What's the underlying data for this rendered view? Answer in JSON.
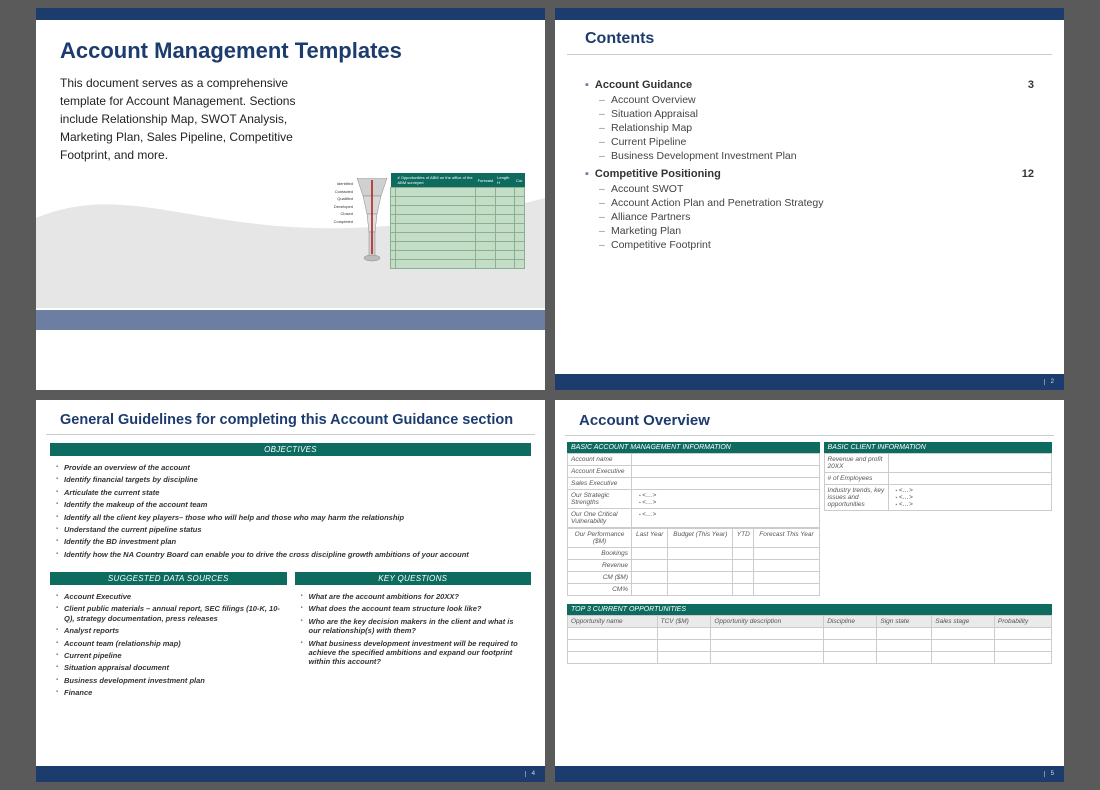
{
  "colors": {
    "navy": "#1d3c6e",
    "teal": "#0d6b5f",
    "slate": "#6c7fa3",
    "mint": "#c4ddc7",
    "bg": "#5a5a5a"
  },
  "slide1": {
    "title": "Account Management Templates",
    "description": "This document serves as a comprehensive template for Account Management.  Sections include Relationship Map, SWOT Analysis, Marketing Plan, Sales Pipeline, Competitive Footprint, and more.",
    "funnel_labels": [
      "Identified",
      "Contacted",
      "Qualified",
      "Developed",
      "Closed",
      "Completed"
    ],
    "mini_table": {
      "header": [
        "",
        "# Opportunities of ABM on the office of the ABM surveyed",
        "Forecast",
        "Length  H",
        "Cur"
      ],
      "rows": 9
    }
  },
  "slide2": {
    "title": "Contents",
    "page_number": "2",
    "sections": [
      {
        "label": "Account Guidance",
        "page": "3",
        "items": [
          "Account Overview",
          "Situation Appraisal",
          "Relationship Map",
          "Current Pipeline",
          "Business Development Investment Plan"
        ]
      },
      {
        "label": "Competitive Positioning",
        "page": "12",
        "items": [
          "Account SWOT",
          "Account Action Plan and Penetration Strategy",
          "Alliance Partners",
          "Marketing Plan",
          "Competitive Footprint"
        ]
      }
    ]
  },
  "slide3": {
    "title": "General Guidelines for completing this Account Guidance section",
    "page_number": "4",
    "objectives_header": "OBJECTIVES",
    "objectives": [
      "Provide an overview of the account",
      "Identify financial targets by discipline",
      "Articulate the current state",
      "Identify the makeup of the account team",
      "Identify all the client key players– those who will help and those who may harm the relationship",
      "Understand the current pipeline status",
      "Identify the BD investment plan",
      "Identify how the NA Country Board can enable you to drive the cross discipline growth ambitions of your account"
    ],
    "sources_header": "SUGGESTED DATA SOURCES",
    "sources": [
      "Account Executive",
      "Client public materials – annual report, SEC filings (10-K, 10-Q), strategy documentation, press releases",
      "Analyst reports",
      "Account team (relationship map)",
      "Current pipeline",
      "Situation appraisal document",
      "Business development investment plan",
      "Finance"
    ],
    "questions_header": "KEY QUESTIONS",
    "questions": [
      "What are the account ambitions for 20XX?",
      "What does the account team structure look like?",
      "Who are the key decision makers in the client and what is our relationship(s) with them?",
      "What business development investment will be required to achieve the specified ambitions and expand our footprint within this account?"
    ]
  },
  "slide4": {
    "title": "Account Overview",
    "page_number": "5",
    "left_header": "BASIC ACCOUNT MANAGEMENT INFORMATION",
    "right_header": "BASIC CLIENT INFORMATION",
    "left_rows": [
      {
        "label": "Account name",
        "value": ""
      },
      {
        "label": "Account Executive",
        "value": ""
      },
      {
        "label": "Sales Executive",
        "value": ""
      },
      {
        "label": "Our Strategic Strengths",
        "value_list": [
          "<…>",
          "<…>"
        ]
      },
      {
        "label": "Our One Critical Vulnerability",
        "value_list": [
          "<…>"
        ]
      }
    ],
    "right_rows": [
      {
        "label": "Revenue and profit 20XX",
        "value": ""
      },
      {
        "label": "# of Employees",
        "value": ""
      },
      {
        "label": "Industry trends, key issues and opportunities",
        "value_list": [
          "<…>",
          "<…>",
          "<…>"
        ]
      }
    ],
    "perf_label": "Our Performance ($M)",
    "perf_cols": [
      "Last Year",
      "Budget (This Year)",
      "YTD",
      "Forecast This Year"
    ],
    "perf_rows": [
      "Bookings",
      "Revenue",
      "CM ($M)",
      "CM%"
    ],
    "opp_header": "TOP 3 CURRENT OPPORTUNITIES",
    "opp_cols": [
      "Opportunity name",
      "TCV ($M)",
      "Opportunity description",
      "Discipline",
      "Sign state",
      "Sales stage",
      "Probability"
    ],
    "opp_row_count": 3
  }
}
